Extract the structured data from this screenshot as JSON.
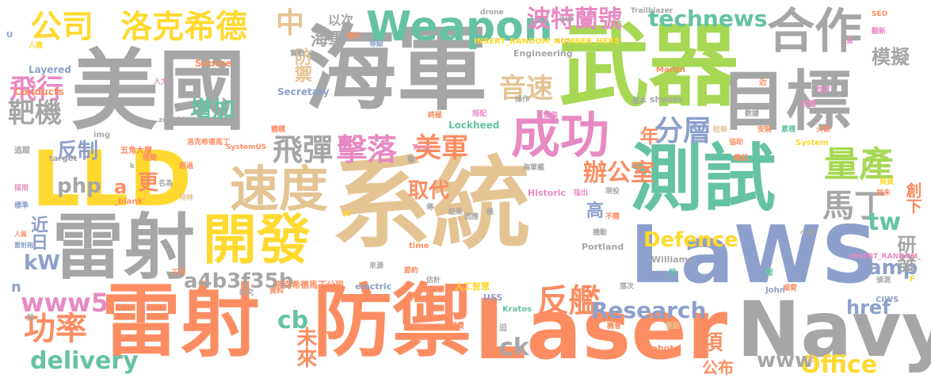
{
  "palette": {
    "gray": "#a6a6a6",
    "green": "#a6d854",
    "orange": "#fc8d62",
    "yellow": "#ffd92f",
    "tan": "#e5c494",
    "teal": "#66c2a5",
    "blue": "#8da0cb",
    "pink": "#e78ac3"
  },
  "words": [
    {
      "text": "系統",
      "color": "tan"
    },
    {
      "text": "海軍",
      "color": "gray"
    },
    {
      "text": "美國",
      "color": "gray"
    },
    {
      "text": "武器",
      "color": "green"
    },
    {
      "text": "LLD",
      "color": "yellow"
    },
    {
      "text": "LaWS",
      "color": "blue"
    },
    {
      "text": "雷射",
      "color": "orange"
    },
    {
      "text": "防禦",
      "color": "orange"
    },
    {
      "text": "Laser",
      "color": "orange"
    },
    {
      "text": "測試",
      "color": "teal"
    },
    {
      "text": "Navy",
      "color": "gray"
    },
    {
      "text": "雷射",
      "color": "gray"
    },
    {
      "text": "目標",
      "color": "gray"
    },
    {
      "text": "合作",
      "color": "gray"
    },
    {
      "text": "開發",
      "color": "yellow"
    },
    {
      "text": "成功",
      "color": "pink"
    },
    {
      "text": "速度",
      "color": "tan"
    },
    {
      "text": "Weapon",
      "color": "teal"
    },
    {
      "text": "公司",
      "color": "yellow"
    },
    {
      "text": "洛克希德",
      "color": "yellow"
    },
    {
      "text": "量產",
      "color": "green"
    },
    {
      "text": "擊落",
      "color": "pink"
    },
    {
      "text": "飛彈",
      "color": "gray"
    },
    {
      "text": "功率",
      "color": "orange"
    },
    {
      "text": "反艦",
      "color": "orange"
    },
    {
      "text": "馬丁",
      "color": "gray"
    },
    {
      "text": "分層",
      "color": "blue"
    },
    {
      "text": "美軍",
      "color": "orange"
    },
    {
      "text": "飛行",
      "color": "pink"
    },
    {
      "text": "靶機",
      "color": "gray"
    },
    {
      "text": "音速",
      "color": "tan"
    },
    {
      "text": "technews",
      "color": "teal"
    },
    {
      "text": "波特蘭號",
      "color": "pink"
    },
    {
      "text": "www5",
      "color": "pink"
    },
    {
      "text": "Research",
      "color": "blue"
    },
    {
      "text": "Defence",
      "color": "yellow"
    },
    {
      "text": "Office",
      "color": "yellow"
    },
    {
      "text": "www",
      "color": "gray"
    },
    {
      "text": "delivery",
      "color": "teal"
    },
    {
      "text": "反制",
      "color": "blue"
    },
    {
      "text": "增加",
      "color": "teal"
    },
    {
      "text": "中",
      "color": "tan"
    },
    {
      "text": "防禦",
      "color": "tan"
    },
    {
      "text": "tw",
      "color": "teal"
    },
    {
      "text": "amp",
      "color": "blue"
    },
    {
      "text": "php",
      "color": "gray"
    },
    {
      "text": "a4b3f35b",
      "color": "gray"
    },
    {
      "text": "辦公室",
      "color": "orange"
    },
    {
      "text": "取代",
      "color": "orange"
    },
    {
      "text": "href",
      "color": "blue"
    },
    {
      "text": "kW",
      "color": "blue"
    },
    {
      "text": "cb",
      "color": "teal"
    },
    {
      "text": "ck",
      "color": "gray"
    },
    {
      "text": "未來",
      "color": "orange"
    },
    {
      "text": "海軍",
      "color": "gray"
    },
    {
      "text": "年",
      "color": "orange"
    },
    {
      "text": "模擬",
      "color": "gray"
    },
    {
      "text": "研發",
      "color": "gray"
    },
    {
      "text": "更",
      "color": "orange"
    },
    {
      "text": "近日",
      "color": "blue"
    },
    {
      "text": "項",
      "color": "orange"
    },
    {
      "text": "公布",
      "color": "orange"
    },
    {
      "text": "高",
      "color": "blue"
    },
    {
      "text": "a",
      "color": "orange"
    },
    {
      "text": "n",
      "color": "blue"
    },
    {
      "text": "以次",
      "color": "gray"
    },
    {
      "text": "創下",
      "color": "orange"
    },
    {
      "text": "Lockheed",
      "color": "teal"
    },
    {
      "text": "Martin",
      "color": "orange"
    },
    {
      "text": "Secretary",
      "color": "blue"
    },
    {
      "text": "Layered",
      "color": "blue"
    },
    {
      "text": "Engineering",
      "color": "gray"
    },
    {
      "text": "Source",
      "color": "orange"
    },
    {
      "text": "Conducts",
      "color": "orange"
    },
    {
      "text": "Historic",
      "color": "pink"
    },
    {
      "text": "Test",
      "color": "pink"
    },
    {
      "text": "Portland",
      "color": "gray"
    },
    {
      "text": "Williams",
      "color": "gray"
    },
    {
      "text": "John",
      "color": "blue"
    },
    {
      "text": "electric",
      "color": "blue"
    },
    {
      "text": "USS",
      "color": "blue"
    },
    {
      "text": "Kratos",
      "color": "teal"
    },
    {
      "text": "CIWS",
      "color": "blue"
    },
    {
      "text": "photo",
      "color": "orange"
    },
    {
      "text": "shoots",
      "color": "gray"
    },
    {
      "text": "Trailblazer",
      "color": "gray"
    },
    {
      "text": "drone",
      "color": "gray"
    },
    {
      "text": "time",
      "color": "orange"
    },
    {
      "text": "img",
      "color": "gray"
    },
    {
      "text": "src",
      "color": "gray"
    },
    {
      "text": "target",
      "color": "gray"
    },
    {
      "text": "zoneid",
      "color": "gray"
    },
    {
      "text": "_blank'",
      "color": "orange"
    },
    {
      "text": "SEO",
      "color": "orange"
    },
    {
      "text": "System",
      "color": "yellow"
    },
    {
      "text": "SystemUS",
      "color": "orange"
    },
    {
      "text": "INSERT_RANDOM_NUMBER_HERE'",
      "color": "yellow"
    },
    {
      "text": "INSERT_RANDOM_",
      "color": "pink"
    },
    {
      "text": "aw",
      "color": "gray"
    },
    {
      "text": "洛克希德馬丁公司",
      "color": "orange"
    },
    {
      "text": "洛克希德馬丁",
      "color": "orange"
    },
    {
      "text": "五角大廈",
      "color": "orange"
    },
    {
      "text": "人工智慧",
      "color": "yellow"
    },
    {
      "text": "實戰",
      "color": "gray"
    },
    {
      "text": "人力",
      "color": "pink"
    },
    {
      "text": "額外",
      "color": "orange"
    },
    {
      "text": "等級",
      "color": "blue"
    },
    {
      "text": "追蹤",
      "color": "gray"
    },
    {
      "text": "採用",
      "color": "pink"
    },
    {
      "text": "標準",
      "color": "blue"
    },
    {
      "text": "人員",
      "color": "orange"
    },
    {
      "text": "雷射砲",
      "color": "blue"
    },
    {
      "text": "人機",
      "color": "yellow"
    },
    {
      "text": "精簡",
      "color": "orange"
    },
    {
      "text": "超過",
      "color": "orange"
    },
    {
      "text": "名為",
      "color": "gray"
    },
    {
      "text": "特林",
      "color": "tan"
    },
    {
      "text": "工程",
      "color": "orange"
    },
    {
      "text": "資料",
      "color": "orange"
    },
    {
      "text": "研究",
      "color": "gray"
    },
    {
      "text": "經費",
      "color": "orange"
    },
    {
      "text": "節約",
      "color": "orange"
    },
    {
      "text": "估計",
      "color": "gray"
    },
    {
      "text": "結果",
      "color": "gray"
    },
    {
      "text": "來源",
      "color": "gray"
    },
    {
      "text": "搭配",
      "color": "pink"
    },
    {
      "text": "終極",
      "color": "orange"
    },
    {
      "text": "操作",
      "color": "gray"
    },
    {
      "text": "體積",
      "color": "orange"
    },
    {
      "text": "海軍艦",
      "color": "gray"
    },
    {
      "text": "指出",
      "color": "pink"
    },
    {
      "text": "現役",
      "color": "gray"
    },
    {
      "text": "機會",
      "color": "orange"
    },
    {
      "text": "重點",
      "color": "tan"
    },
    {
      "text": "威脅",
      "color": "orange"
    },
    {
      "text": "偵測",
      "color": "gray"
    },
    {
      "text": "火箭",
      "color": "orange"
    },
    {
      "text": "性質",
      "color": "pink"
    },
    {
      "text": "數據",
      "color": "gray"
    },
    {
      "text": "首圖",
      "color": "pink"
    },
    {
      "text": "安裝",
      "color": "orange"
    },
    {
      "text": "累積",
      "color": "teal"
    },
    {
      "text": "協助",
      "color": "orange"
    },
    {
      "text": "小型",
      "color": "gray"
    },
    {
      "text": "負責",
      "color": "yellow"
    },
    {
      "text": "並未",
      "color": "orange"
    },
    {
      "text": "版本",
      "color": "gray"
    },
    {
      "text": "提供",
      "color": "pink"
    },
    {
      "text": "機動",
      "color": "gray"
    },
    {
      "text": "不需",
      "color": "orange"
    },
    {
      "text": "落次",
      "color": "gray"
    },
    {
      "text": "迫",
      "color": "gray"
    },
    {
      "text": "快",
      "color": "teal"
    },
    {
      "text": "衛",
      "color": "teal"
    },
    {
      "text": "撃",
      "color": "gray"
    },
    {
      "text": "次",
      "color": "tan"
    },
    {
      "text": "近",
      "color": "orange"
    },
    {
      "text": "翻新",
      "color": "pink"
    },
    {
      "text": "傳",
      "color": "gray"
    },
    {
      "text": "因應",
      "color": "gray"
    },
    {
      "text": "極",
      "color": "gray"
    },
    {
      "text": "註條",
      "color": "tan"
    },
    {
      "text": "艦船",
      "color": "orange"
    },
    {
      "text": "U",
      "color": "blue"
    },
    {
      "text": "k",
      "color": "gray"
    },
    {
      "text": "W",
      "color": "yellow"
    },
    {
      "text": "F",
      "color": "yellow"
    },
    {
      "text": "益",
      "color": "pink"
    },
    {
      "text": "師",
      "color": "gray"
    }
  ]
}
